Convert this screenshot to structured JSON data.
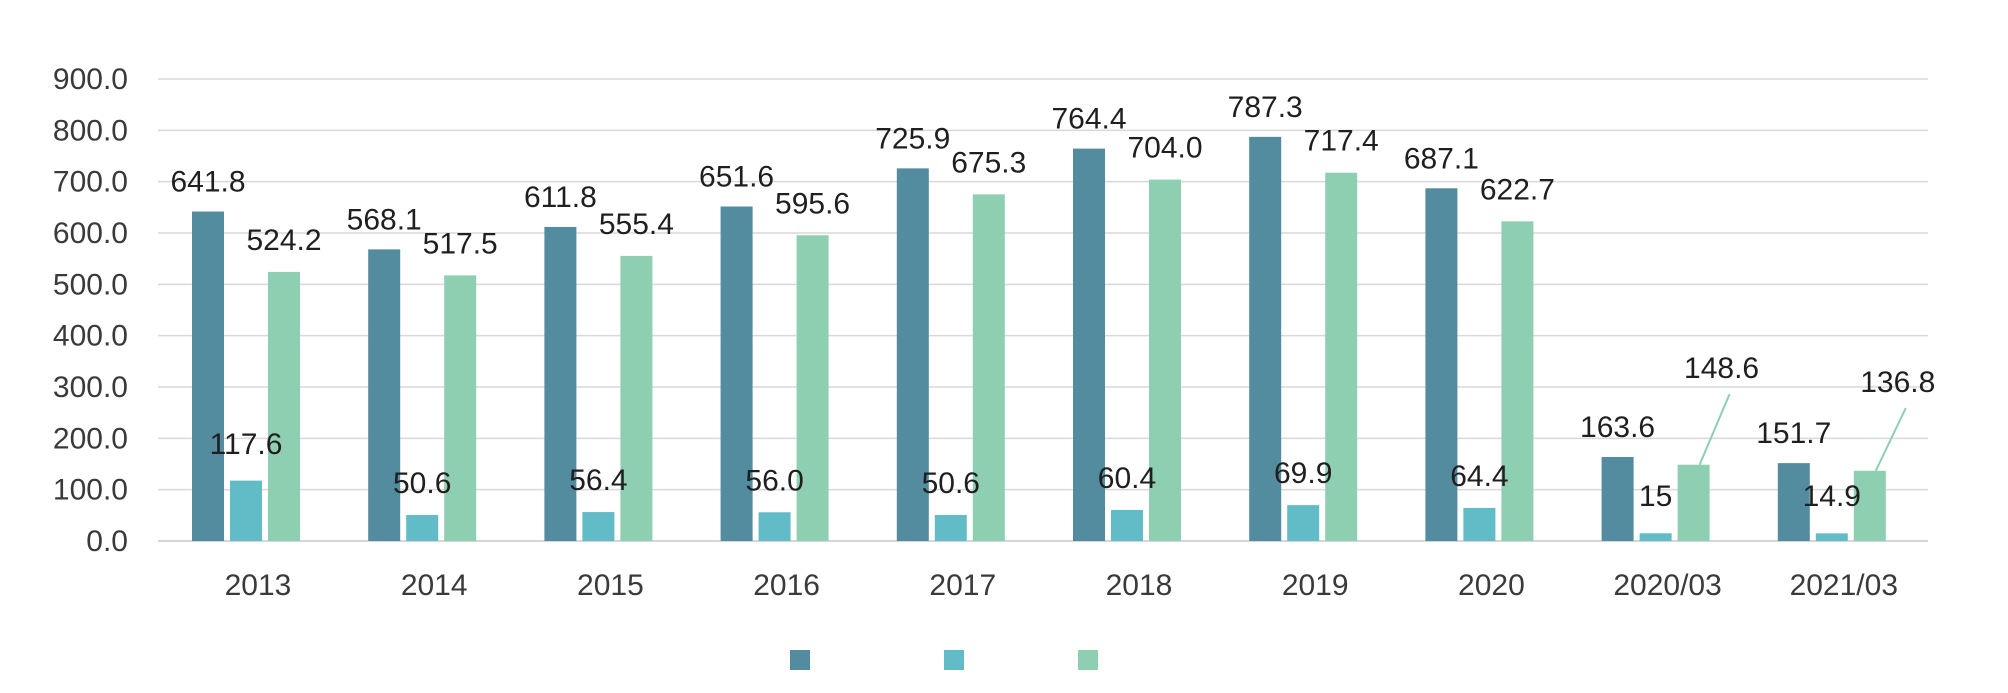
{
  "chart_data": {
    "type": "bar",
    "title": "",
    "xlabel": "",
    "ylabel": "",
    "ylim": [
      0,
      900
    ],
    "yticks": [
      0,
      100,
      200,
      300,
      400,
      500,
      600,
      700,
      800,
      900
    ],
    "ytick_labels": [
      "0.0",
      "100.0",
      "200.0",
      "300.0",
      "400.0",
      "500.0",
      "600.0",
      "700.0",
      "800.0",
      "900.0"
    ],
    "grid": true,
    "legend": "bottom-center",
    "categories": [
      "2013",
      "2014",
      "2015",
      "2016",
      "2017",
      "2018",
      "2019",
      "2020",
      "2020/03",
      "2021/03"
    ],
    "series": [
      {
        "name": "",
        "color": "#528c9e",
        "values": [
          641.8,
          568.1,
          611.8,
          651.6,
          725.9,
          764.4,
          787.3,
          687.1,
          163.6,
          151.7
        ],
        "labels": [
          "641.8",
          "568.1",
          "611.8",
          "651.6",
          "725.9",
          "764.4",
          "787.3",
          "687.1",
          "163.6",
          "151.7"
        ]
      },
      {
        "name": "",
        "color": "#62bcc8",
        "values": [
          117.6,
          50.6,
          56.4,
          56.0,
          50.6,
          60.4,
          69.9,
          64.4,
          15,
          14.9
        ],
        "labels": [
          "117.6",
          "50.6",
          "56.4",
          "56.0",
          "50.6",
          "60.4",
          "69.9",
          "64.4",
          "15",
          "14.9"
        ]
      },
      {
        "name": "",
        "color": "#8ecfb2",
        "values": [
          524.2,
          517.5,
          555.4,
          595.6,
          675.3,
          704.0,
          717.4,
          622.7,
          148.6,
          136.8
        ],
        "labels": [
          "524.2",
          "517.5",
          "555.4",
          "595.6",
          "675.3",
          "704.0",
          "717.4",
          "622.7",
          "148.6",
          "136.8"
        ]
      }
    ]
  }
}
